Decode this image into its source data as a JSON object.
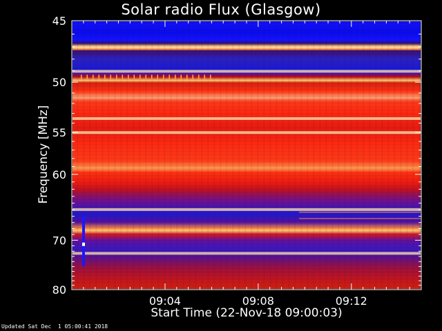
{
  "chart_data": {
    "type": "heatmap",
    "title": "Solar radio Flux (Glasgow)",
    "xlabel": "Start Time (22-Nov-18 09:00:03)",
    "ylabel": "Frequency [MHz]",
    "x_ticks": [
      "09:04",
      "09:08",
      "09:12"
    ],
    "x_tick_minutes": [
      4,
      8,
      12
    ],
    "x_range_minutes": [
      0,
      15
    ],
    "y_ticks": [
      45,
      50,
      55,
      60,
      70,
      80
    ],
    "y_range_mhz": [
      45,
      80
    ],
    "y_scale": "reciprocal",
    "bright_bands_mhz": [
      49.0,
      53.5,
      55.0,
      65.0,
      72.5
    ],
    "colors": {
      "low": "#1010ff",
      "mid": "#ff2010",
      "high": "#ffe8b0"
    }
  },
  "footer": {
    "updated": "Updated Sat Dec  1 05:00:41 2018"
  }
}
